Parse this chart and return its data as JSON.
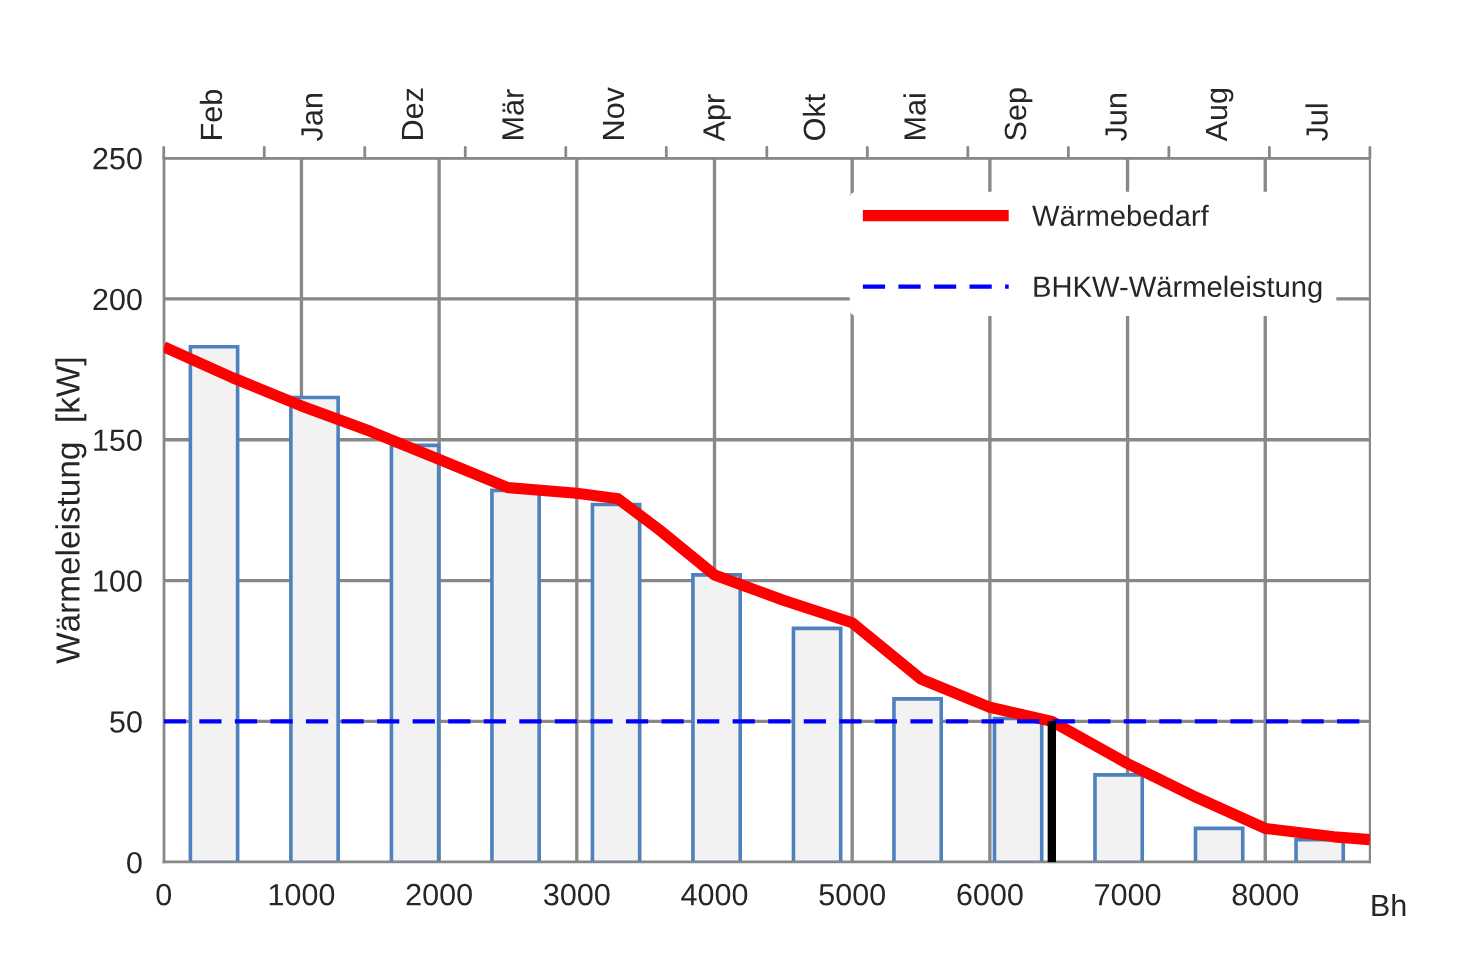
{
  "chart_data": {
    "type": "bar",
    "ylabel": "Wärmeleistung  [kW]",
    "xlabel": "Bh",
    "series": [
      {
        "color": "#4f81bd",
        "x": [
          365,
          1095,
          1825,
          2555,
          3285,
          4015,
          4745,
          5475,
          6205,
          6935,
          7665,
          8395
        ],
        "values": [
          183,
          165,
          148,
          132,
          127,
          102,
          83,
          58,
          51,
          31,
          12,
          8
        ]
      },
      {
        "type": "line",
        "name": "Wärmebedarf",
        "color": "#ff0000",
        "line_style": "solid",
        "x": [
          0,
          500,
          1000,
          1500,
          2000,
          2500,
          3000,
          3300,
          3600,
          4000,
          4500,
          5000,
          5500,
          6000,
          6450,
          7000,
          7500,
          8000,
          8500,
          8760
        ],
        "values": [
          183,
          172,
          162,
          153,
          143,
          133,
          131,
          129,
          118,
          102,
          93,
          85,
          65,
          55,
          50,
          35,
          23,
          12,
          9,
          8
        ]
      },
      {
        "type": "line",
        "name": "BHKW-Wärmeleistung",
        "color": "#0000ff",
        "line_style": "dashed",
        "x": [
          0,
          8760
        ],
        "values": [
          50,
          50
        ]
      },
      {
        "type": "line",
        "color": "#000000",
        "line_style": "solid",
        "x": [
          6450,
          6450
        ],
        "values": [
          0,
          50
        ]
      }
    ],
    "annotations": [
      "Feb",
      "Jan",
      "Dez",
      "Mär",
      "Nov",
      "Apr",
      "Okt",
      "Mai",
      "Sep",
      "Jun",
      "Aug",
      "Jul"
    ],
    "xlim": [
      0,
      8760
    ],
    "xticks": [
      0,
      1000,
      2000,
      3000,
      4000,
      5000,
      6000,
      7000,
      8000
    ],
    "ylim": [
      0,
      250
    ],
    "yticks": [
      0,
      50,
      100,
      150,
      200,
      250
    ],
    "grid": true,
    "legend": "top right"
  }
}
